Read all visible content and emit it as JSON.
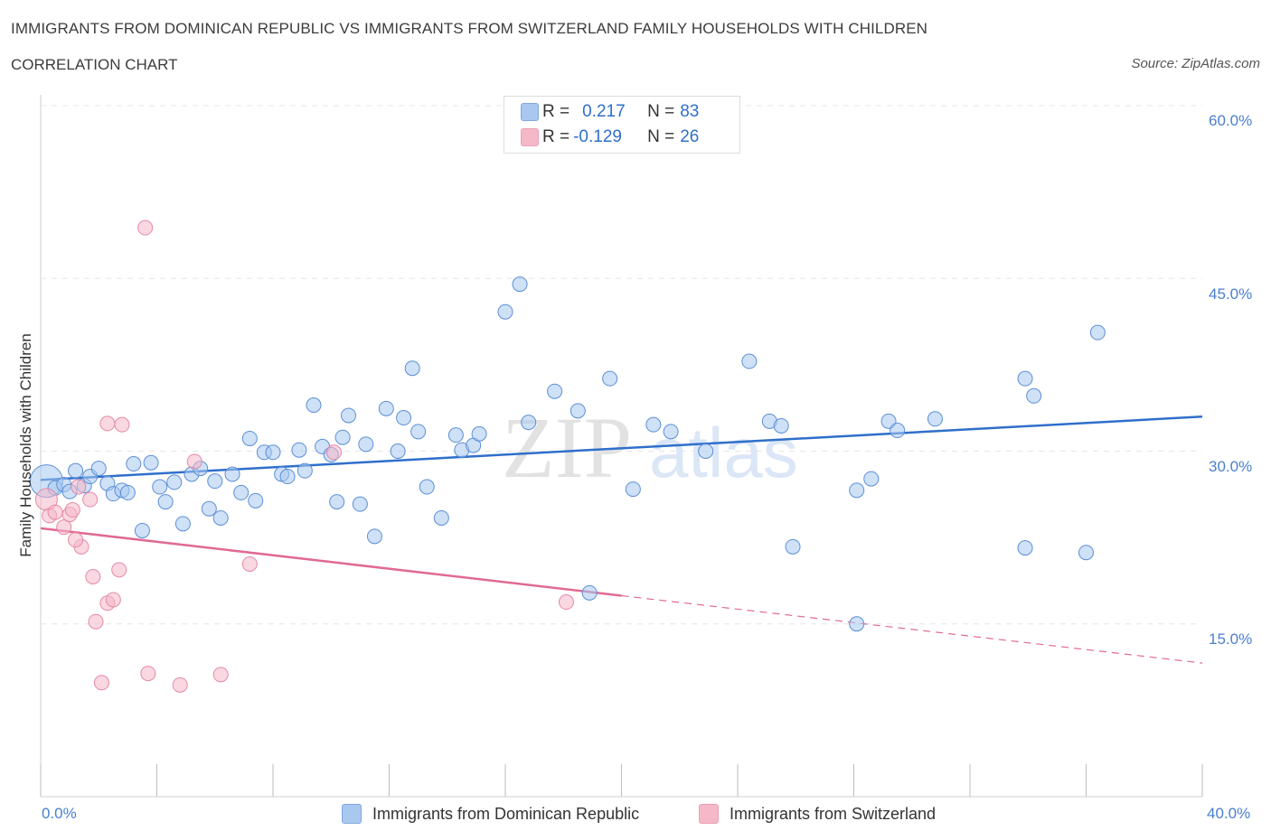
{
  "header": {
    "title": "IMMIGRANTS FROM DOMINICAN REPUBLIC VS IMMIGRANTS FROM SWITZERLAND FAMILY HOUSEHOLDS WITH CHILDREN",
    "subtitle": "CORRELATION CHART",
    "source": "Source: ZipAtlas.com"
  },
  "watermark": {
    "zip": "ZIP",
    "atlas": "atlas"
  },
  "legend": {
    "rows": [
      {
        "r_label": "R = ",
        "r_value": "0.217",
        "n_label": "N = ",
        "n_value": "83",
        "color": "#a8c8f0"
      },
      {
        "r_label": "R = ",
        "r_value": "-0.129",
        "n_label": "N = ",
        "n_value": "26",
        "color": "#f5b8c8"
      }
    ]
  },
  "bottom_legend": {
    "series1": "Immigrants from Dominican Republic",
    "series2": "Immigrants from Switzerland"
  },
  "colors": {
    "blue_fill": "#a8c8f0",
    "blue_stroke": "#5b8fd6",
    "blue_line": "#2f6fcb",
    "pink_fill": "#f5b8c8",
    "pink_stroke": "#e489a6",
    "pink_line": "#e06a93",
    "axis_text": "#4a7fd0",
    "grid": "#e6e6e6"
  },
  "chart_data": {
    "type": "scatter",
    "title": "IMMIGRANTS FROM DOMINICAN REPUBLIC VS IMMIGRANTS FROM SWITZERLAND FAMILY HOUSEHOLDS WITH CHILDREN",
    "ylabel": "Family Households with Children",
    "xlabel": "",
    "xlim": [
      0,
      40
    ],
    "ylim": [
      0,
      60
    ],
    "x_tick_labels": [
      "0.0%",
      "40.0%"
    ],
    "y_ticks": [
      15,
      30,
      45,
      60
    ],
    "y_tick_labels": [
      "15.0%",
      "30.0%",
      "45.0%",
      "60.0%"
    ],
    "series": [
      {
        "name": "Immigrants from Dominican Republic",
        "R": 0.217,
        "N": 83,
        "trend": {
          "x": [
            0,
            40
          ],
          "y": [
            27.5,
            33.0
          ],
          "dashed_from": null
        },
        "points": [
          [
            0.2,
            27.4,
            18
          ],
          [
            0.5,
            26.8,
            8
          ],
          [
            0.8,
            27.1,
            8
          ],
          [
            1.0,
            26.5,
            8
          ],
          [
            1.2,
            28.3,
            8
          ],
          [
            1.5,
            27.0,
            8
          ],
          [
            1.7,
            27.8,
            8
          ],
          [
            2.0,
            28.5,
            8
          ],
          [
            2.3,
            27.2,
            8
          ],
          [
            2.5,
            26.3,
            8
          ],
          [
            2.8,
            26.6,
            8
          ],
          [
            3.0,
            26.4,
            8
          ],
          [
            3.2,
            28.9,
            8
          ],
          [
            3.5,
            23.1,
            8
          ],
          [
            3.8,
            29.0,
            8
          ],
          [
            4.1,
            26.9,
            8
          ],
          [
            4.3,
            25.6,
            8
          ],
          [
            4.6,
            27.3,
            8
          ],
          [
            4.9,
            23.7,
            8
          ],
          [
            5.2,
            28.0,
            8
          ],
          [
            5.5,
            28.5,
            8
          ],
          [
            5.8,
            25.0,
            8
          ],
          [
            6.0,
            27.4,
            8
          ],
          [
            6.2,
            24.2,
            8
          ],
          [
            6.6,
            28.0,
            8
          ],
          [
            6.9,
            26.4,
            8
          ],
          [
            7.2,
            31.1,
            8
          ],
          [
            7.4,
            25.7,
            8
          ],
          [
            7.7,
            29.9,
            8
          ],
          [
            8.0,
            29.9,
            8
          ],
          [
            8.3,
            28.0,
            8
          ],
          [
            8.5,
            27.8,
            8
          ],
          [
            8.9,
            30.1,
            8
          ],
          [
            9.1,
            28.3,
            8
          ],
          [
            9.4,
            34.0,
            8
          ],
          [
            9.7,
            30.4,
            8
          ],
          [
            10.0,
            29.7,
            8
          ],
          [
            10.2,
            25.6,
            8
          ],
          [
            10.4,
            31.2,
            8
          ],
          [
            10.6,
            33.1,
            8
          ],
          [
            11.0,
            25.4,
            8
          ],
          [
            11.2,
            30.6,
            8
          ],
          [
            11.5,
            22.6,
            8
          ],
          [
            11.9,
            33.7,
            8
          ],
          [
            12.3,
            30.0,
            8
          ],
          [
            12.5,
            32.9,
            8
          ],
          [
            12.8,
            37.2,
            8
          ],
          [
            13.0,
            31.7,
            8
          ],
          [
            13.3,
            26.9,
            8
          ],
          [
            13.8,
            24.2,
            8
          ],
          [
            14.3,
            31.4,
            8
          ],
          [
            14.5,
            30.1,
            8
          ],
          [
            14.9,
            30.5,
            8
          ],
          [
            15.1,
            31.5,
            8
          ],
          [
            16.0,
            42.1,
            8
          ],
          [
            16.5,
            44.5,
            8
          ],
          [
            16.8,
            32.5,
            8
          ],
          [
            17.7,
            35.2,
            8
          ],
          [
            18.5,
            33.5,
            8
          ],
          [
            18.9,
            17.7,
            8
          ],
          [
            19.6,
            36.3,
            8
          ],
          [
            20.4,
            26.7,
            8
          ],
          [
            21.1,
            32.3,
            8
          ],
          [
            21.7,
            31.7,
            8
          ],
          [
            22.9,
            30.0,
            8
          ],
          [
            24.4,
            37.8,
            8
          ],
          [
            25.1,
            32.6,
            8
          ],
          [
            25.5,
            32.2,
            8
          ],
          [
            25.9,
            21.7,
            8
          ],
          [
            28.1,
            26.6,
            8
          ],
          [
            28.1,
            15.0,
            8
          ],
          [
            28.6,
            27.6,
            8
          ],
          [
            29.2,
            32.6,
            8
          ],
          [
            29.5,
            31.8,
            8
          ],
          [
            30.8,
            32.8,
            8
          ],
          [
            33.9,
            21.6,
            8
          ],
          [
            33.9,
            36.3,
            8
          ],
          [
            34.2,
            34.8,
            8
          ],
          [
            36.0,
            21.2,
            8
          ],
          [
            36.4,
            40.3,
            8
          ]
        ]
      },
      {
        "name": "Immigrants from Switzerland",
        "R": -0.129,
        "N": 26,
        "trend": {
          "x": [
            0,
            40
          ],
          "y": [
            23.3,
            11.6
          ],
          "dashed_from": 20
        },
        "points": [
          [
            0.2,
            25.8,
            12
          ],
          [
            0.3,
            24.4,
            8
          ],
          [
            0.5,
            24.7,
            8
          ],
          [
            0.8,
            23.4,
            8
          ],
          [
            1.0,
            24.5,
            8
          ],
          [
            1.3,
            26.9,
            8
          ],
          [
            1.4,
            21.7,
            8
          ],
          [
            1.7,
            25.8,
            8
          ],
          [
            1.8,
            19.1,
            8
          ],
          [
            1.9,
            15.2,
            8
          ],
          [
            2.1,
            9.9,
            8
          ],
          [
            2.3,
            32.4,
            8
          ],
          [
            2.3,
            16.8,
            8
          ],
          [
            2.5,
            17.1,
            8
          ],
          [
            2.7,
            19.7,
            8
          ],
          [
            2.8,
            32.3,
            8
          ],
          [
            3.6,
            49.4,
            8
          ],
          [
            3.7,
            10.7,
            8
          ],
          [
            4.8,
            9.7,
            8
          ],
          [
            5.3,
            29.1,
            8
          ],
          [
            6.2,
            10.6,
            8
          ],
          [
            7.2,
            20.2,
            8
          ],
          [
            10.1,
            29.9,
            8
          ],
          [
            18.1,
            16.9,
            8
          ],
          [
            1.1,
            24.9,
            8
          ],
          [
            1.2,
            22.3,
            8
          ]
        ]
      }
    ]
  }
}
